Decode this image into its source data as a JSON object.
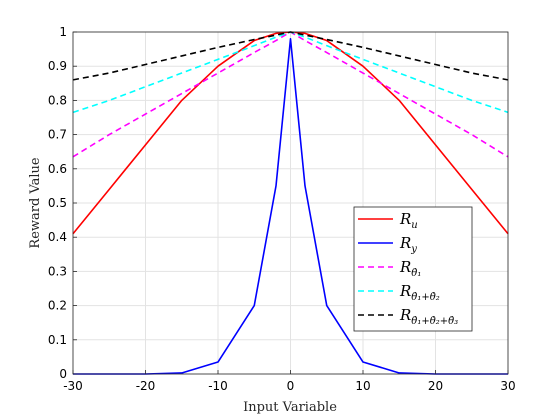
{
  "chart_data": {
    "type": "line",
    "xlabel": "Input Variable",
    "ylabel": "Reward Value",
    "xlim": [
      -30,
      30
    ],
    "ylim": [
      0,
      1
    ],
    "xticks": [
      "-30",
      "-20",
      "-10",
      "0",
      "10",
      "20",
      "30"
    ],
    "yticks": [
      "0",
      "0.1",
      "0.2",
      "0.3",
      "0.4",
      "0.5",
      "0.6",
      "0.7",
      "0.8",
      "0.9",
      "1"
    ],
    "grid": true,
    "legend_position": "lower-right",
    "x": [
      -30,
      -25,
      -20,
      -15,
      -10,
      -5,
      -2,
      0,
      2,
      5,
      10,
      15,
      20,
      25,
      30
    ],
    "series": [
      {
        "name": "R_u",
        "legend_main": "R",
        "legend_sub": "u",
        "color": "#ff0000",
        "dash": "solid",
        "values": [
          0.41,
          0.54,
          0.67,
          0.8,
          0.9,
          0.975,
          0.996,
          1.0,
          0.996,
          0.975,
          0.9,
          0.8,
          0.67,
          0.54,
          0.41
        ]
      },
      {
        "name": "R_y",
        "legend_main": "R",
        "legend_sub": "y",
        "color": "#0000ff",
        "dash": "solid",
        "values": [
          0.0,
          0.0,
          0.0,
          0.003,
          0.035,
          0.2,
          0.55,
          0.98,
          0.55,
          0.2,
          0.035,
          0.003,
          0.0,
          0.0,
          0.0
        ]
      },
      {
        "name": "R_θ̇1",
        "legend_main": "R",
        "legend_sub": "θ̇₁",
        "color": "#ff00ff",
        "dash": "dashed",
        "values": [
          0.635,
          0.7,
          0.76,
          0.82,
          0.88,
          0.94,
          0.975,
          1.0,
          0.975,
          0.94,
          0.88,
          0.82,
          0.76,
          0.7,
          0.635
        ]
      },
      {
        "name": "R_θ̇1+θ̇2",
        "legend_main": "R",
        "legend_sub": "θ̇₁+θ̇₂",
        "color": "#00ffff",
        "dash": "dashed",
        "values": [
          0.765,
          0.8,
          0.84,
          0.88,
          0.92,
          0.96,
          0.985,
          1.0,
          0.985,
          0.96,
          0.92,
          0.88,
          0.84,
          0.8,
          0.765
        ]
      },
      {
        "name": "R_θ̇1+θ̇2+θ̇3",
        "legend_main": "R",
        "legend_sub": "θ̇₁+θ̇₂+θ̇₃",
        "color": "#000000",
        "dash": "dashed",
        "values": [
          0.86,
          0.88,
          0.905,
          0.93,
          0.955,
          0.978,
          0.991,
          1.0,
          0.991,
          0.978,
          0.955,
          0.93,
          0.905,
          0.88,
          0.86
        ]
      }
    ]
  }
}
